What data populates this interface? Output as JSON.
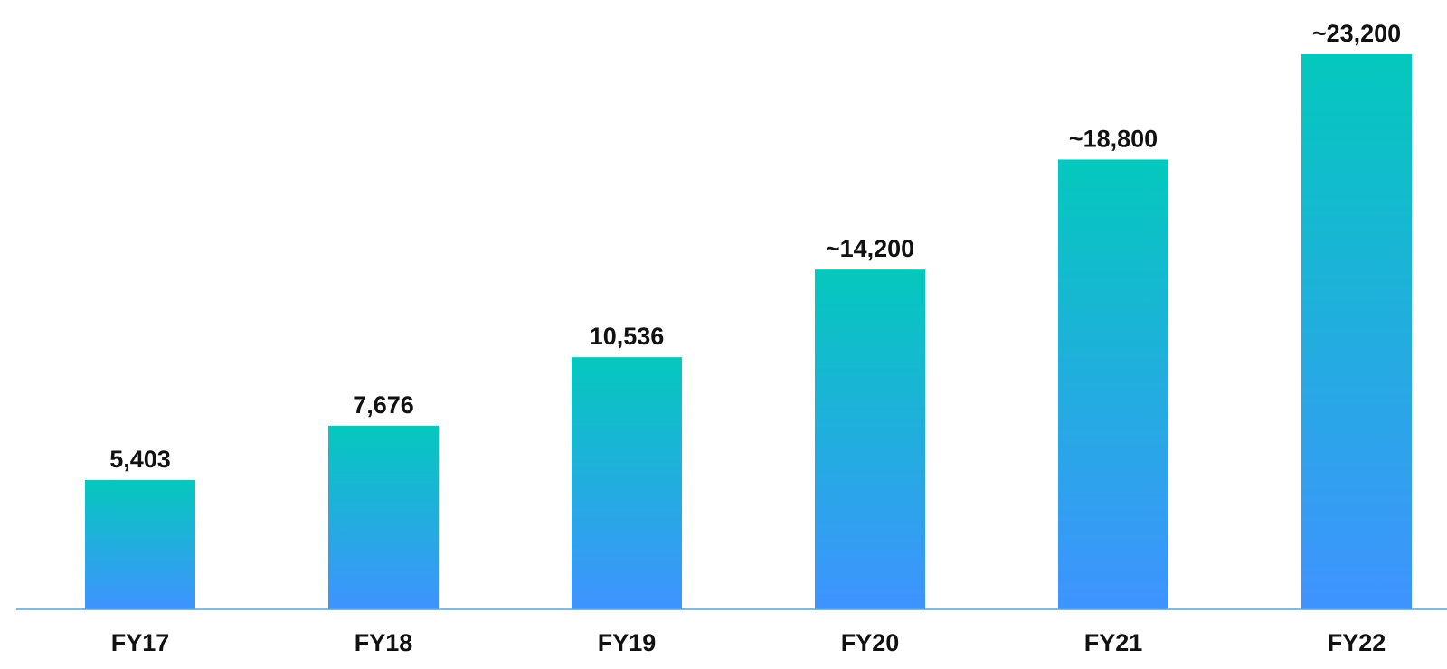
{
  "chart_data": {
    "type": "bar",
    "title": "",
    "xlabel": "",
    "ylabel": "",
    "categories": [
      "FY17",
      "FY18",
      "FY19",
      "FY20",
      "FY21",
      "FY22"
    ],
    "values": [
      5403,
      7676,
      10536,
      14200,
      18800,
      23200
    ],
    "data_labels": [
      "5,403",
      "7,676",
      "10,536",
      "~14,200",
      "~18,800",
      "~23,200"
    ],
    "ylim": [
      0,
      23200
    ],
    "grid": false,
    "legend": "none"
  },
  "colors": {
    "bar_top": "#04c8bd",
    "bar_bottom": "#3f93ff",
    "axis_line": "#4aa6e8",
    "text": "#111111"
  }
}
